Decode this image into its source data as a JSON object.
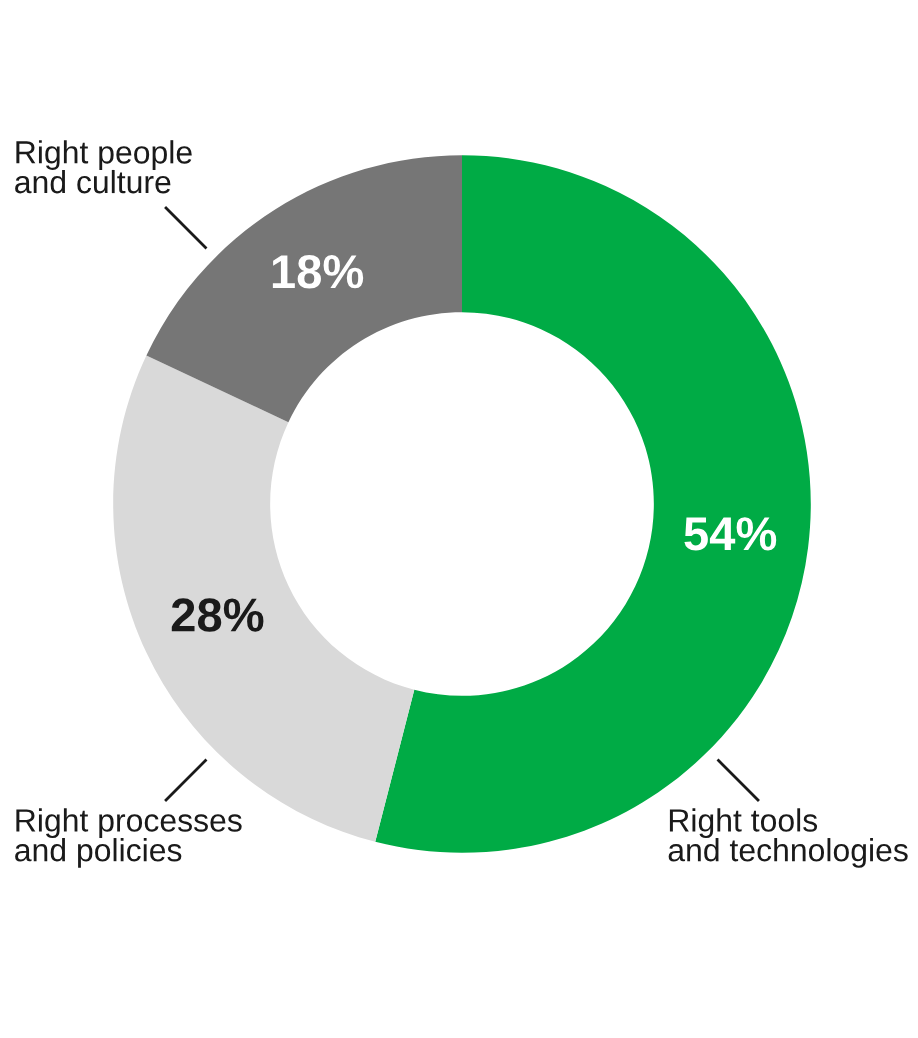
{
  "chart_data": {
    "type": "donut",
    "categories": [
      "Right tools\nand technologies",
      "Right processes\nand policies",
      "Right people\nand culture"
    ],
    "values": [
      54,
      28,
      18
    ],
    "value_labels": [
      "54%",
      "28%",
      "18%"
    ],
    "colors": [
      "#00ab45",
      "#d9d9d9",
      "#767676"
    ],
    "legend": false
  }
}
